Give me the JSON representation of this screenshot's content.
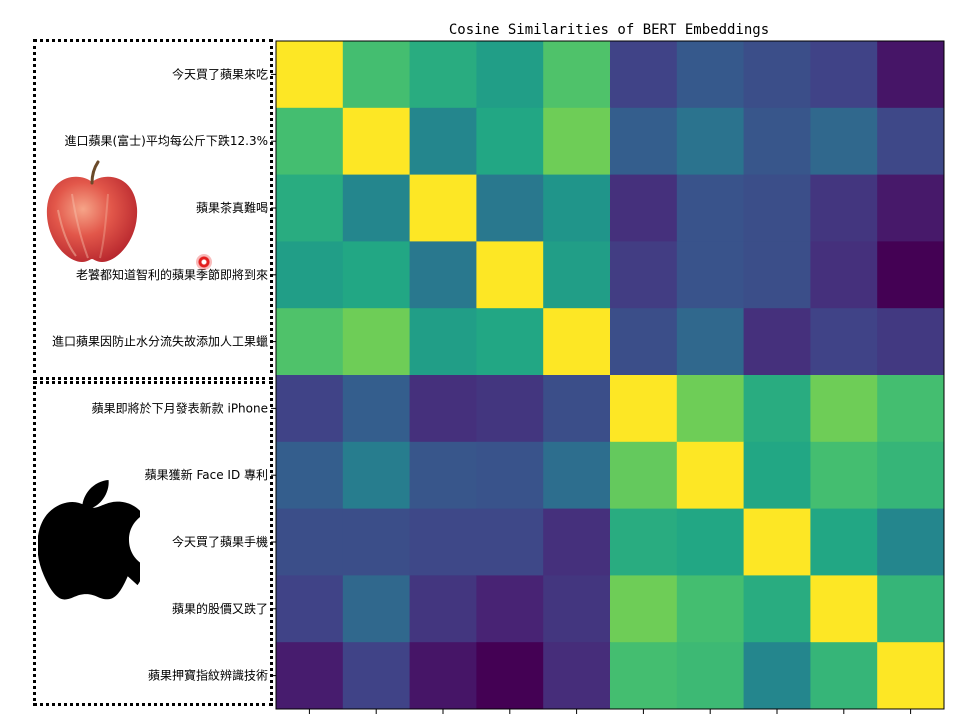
{
  "chart_data": {
    "type": "heatmap",
    "title": "Cosine Similarities of BERT Embeddings",
    "row_labels": [
      "今天買了蘋果來吃",
      "進口蘋果(富士)平均每公斤下跌12.3%",
      "蘋果茶真難喝",
      "老饕都知道智利的蘋果季節即將到來",
      "進口蘋果因防止水分流失故添加人工果蠟",
      "蘋果即將於下月發表新款 iPhone",
      "蘋果獲新 Face ID 專利",
      "今天買了蘋果手機",
      "蘋果的股價又跌了",
      "蘋果押寶指紋辨識技術"
    ],
    "colormap": "viridis",
    "vmin": 0.0,
    "vmax": 1.0,
    "values": [
      [
        1.0,
        0.7,
        0.62,
        0.56,
        0.72,
        0.2,
        0.28,
        0.24,
        0.2,
        0.06
      ],
      [
        0.7,
        1.0,
        0.46,
        0.6,
        0.78,
        0.3,
        0.38,
        0.27,
        0.34,
        0.22
      ],
      [
        0.62,
        0.46,
        1.0,
        0.4,
        0.52,
        0.14,
        0.26,
        0.24,
        0.16,
        0.07
      ],
      [
        0.56,
        0.6,
        0.4,
        1.0,
        0.56,
        0.18,
        0.26,
        0.24,
        0.14,
        0.0
      ],
      [
        0.72,
        0.78,
        0.56,
        0.6,
        1.0,
        0.24,
        0.34,
        0.14,
        0.2,
        0.17
      ],
      [
        0.2,
        0.3,
        0.14,
        0.16,
        0.24,
        1.0,
        0.78,
        0.62,
        0.78,
        0.7
      ],
      [
        0.3,
        0.42,
        0.27,
        0.26,
        0.36,
        0.76,
        1.0,
        0.6,
        0.7,
        0.66
      ],
      [
        0.24,
        0.24,
        0.22,
        0.22,
        0.14,
        0.62,
        0.6,
        1.0,
        0.6,
        0.46
      ],
      [
        0.2,
        0.34,
        0.16,
        0.1,
        0.16,
        0.78,
        0.7,
        0.62,
        1.0,
        0.66
      ],
      [
        0.08,
        0.2,
        0.06,
        0.0,
        0.13,
        0.7,
        0.68,
        0.46,
        0.66,
        1.0
      ]
    ]
  }
}
